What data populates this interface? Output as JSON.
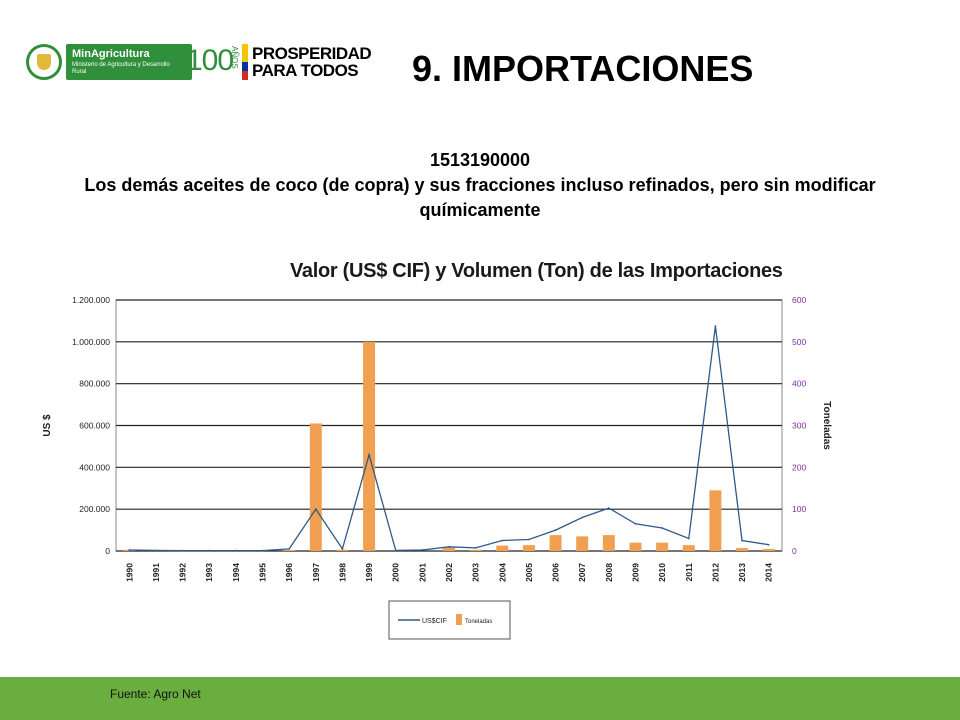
{
  "header": {
    "logo_min": {
      "title": "MinAgricultura",
      "sub": "Ministerio de Agricultura y Desarrollo Rural"
    },
    "logo_100": {
      "num": "100",
      "anos": "AÑOS"
    },
    "logo_prosperidad": {
      "line1": "PROSPERIDAD",
      "line2": "PARA TODOS",
      "colors": [
        "#f5c400",
        "#0033a0",
        "#d52b1e"
      ]
    },
    "title": "9. IMPORTACIONES"
  },
  "subtitle": {
    "code": "1513190000",
    "description": "Los demás aceites de coco (de copra) y sus fracciones incluso refinados, pero sin modificar químicamente"
  },
  "footer": {
    "source": "Fuente: Agro Net",
    "color": "#6aae3f"
  },
  "chart_data": {
    "type": "bar",
    "title": "Valor (US$ CIF) y Volumen (Ton) de las Importaciones",
    "categories": [
      "1990",
      "1991",
      "1992",
      "1993",
      "1994",
      "1995",
      "1996",
      "1997",
      "1998",
      "1999",
      "2000",
      "2001",
      "2002",
      "2003",
      "2004",
      "2005",
      "2006",
      "2007",
      "2008",
      "2009",
      "2010",
      "2011",
      "2012",
      "2013",
      "2014"
    ],
    "y_left": {
      "label": "US $",
      "min": 0,
      "max": 1200000,
      "ticks": [
        {
          "v": 0,
          "t": "0"
        },
        {
          "v": 200000,
          "t": "200.000"
        },
        {
          "v": 400000,
          "t": "400.000"
        },
        {
          "v": 600000,
          "t": "600.000"
        },
        {
          "v": 800000,
          "t": "800.000"
        },
        {
          "v": 1000000,
          "t": "1.000.000"
        },
        {
          "v": 1200000,
          "t": "1.200.000"
        }
      ]
    },
    "y_right": {
      "label": "Toneladas",
      "min": 0,
      "max": 600,
      "ticks": [
        {
          "v": 0,
          "t": "0"
        },
        {
          "v": 100,
          "t": "100"
        },
        {
          "v": 200,
          "t": "200"
        },
        {
          "v": 300,
          "t": "300"
        },
        {
          "v": 400,
          "t": "400"
        },
        {
          "v": 500,
          "t": "500"
        },
        {
          "v": 600,
          "t": "600"
        }
      ]
    },
    "series": [
      {
        "name": "US$CIF",
        "type": "line",
        "axis": "left",
        "color": "#2e5a8a",
        "values": [
          5000,
          3000,
          2000,
          2000,
          2000,
          2000,
          10000,
          200000,
          10000,
          460000,
          3000,
          5000,
          20000,
          15000,
          50000,
          55000,
          100000,
          160000,
          205000,
          130000,
          110000,
          60000,
          1075000,
          50000,
          30000
        ]
      },
      {
        "name": "Toneladas",
        "type": "bar",
        "axis": "right",
        "color": "#f0a050",
        "values": [
          3,
          0,
          0,
          0,
          0,
          0,
          2,
          305,
          3,
          500,
          0,
          0,
          8,
          3,
          13,
          14,
          38,
          35,
          38,
          20,
          20,
          14,
          145,
          7,
          5
        ]
      }
    ],
    "legend": {
      "position": "bottom"
    },
    "grid": true
  }
}
